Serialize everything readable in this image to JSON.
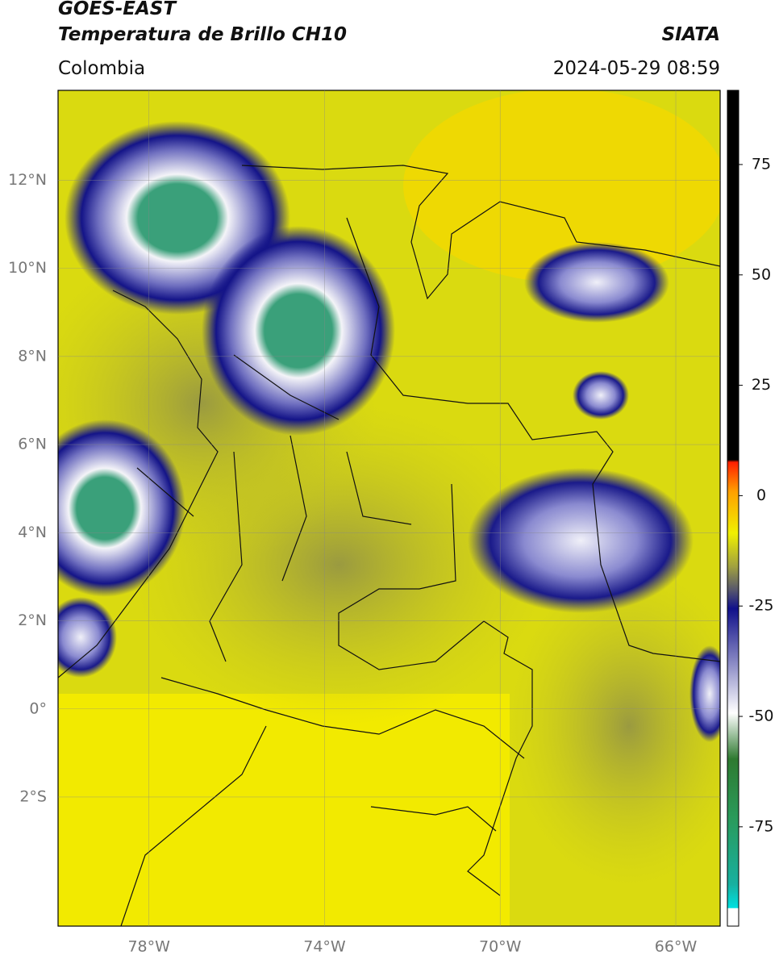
{
  "header": {
    "title_line1": "GOES-EAST",
    "title_line2": "Temperatura de Brillo CH10",
    "region": "Colombia",
    "source": "SIATA",
    "timestamp": "2024-05-29 08:59"
  },
  "map": {
    "lonlim": [
      -80.07,
      -64.99
    ],
    "latlim": [
      -4.93,
      14.04
    ],
    "lonticks": [
      {
        "value": -78,
        "label": "78°W"
      },
      {
        "value": -74,
        "label": "74°W"
      },
      {
        "value": -70,
        "label": "70°W"
      },
      {
        "value": -66,
        "label": "66°W"
      }
    ],
    "latticks": [
      {
        "value": 12,
        "label": "12°N"
      },
      {
        "value": 10,
        "label": "10°N"
      },
      {
        "value": 8,
        "label": "8°N"
      },
      {
        "value": 6,
        "label": "6°N"
      },
      {
        "value": 4,
        "label": "4°N"
      },
      {
        "value": 2,
        "label": "2°N"
      },
      {
        "value": 0,
        "label": "0°"
      },
      {
        "value": -2,
        "label": "2°S"
      }
    ]
  },
  "colorbar": {
    "lim": [
      -97.5,
      91.8
    ],
    "ticks": [
      75,
      50,
      25,
      0,
      -25,
      -50,
      -75
    ]
  }
}
